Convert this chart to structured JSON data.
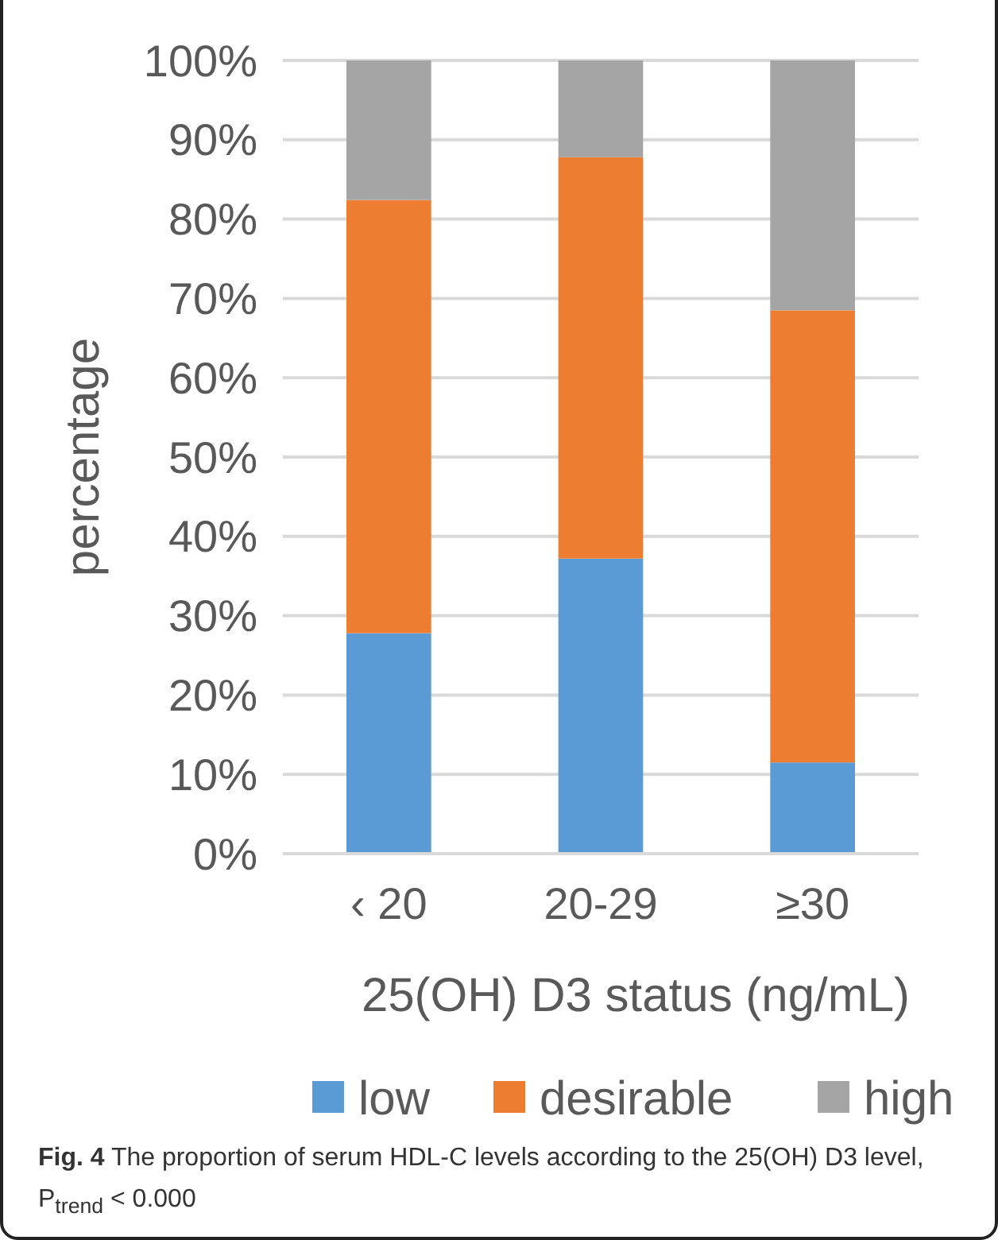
{
  "chart_data": {
    "type": "bar",
    "stacked": true,
    "xlabel": "25(OH) D3 status (ng/mL)",
    "ylabel": "percentage",
    "categories": [
      "‹ 20",
      "20-29",
      "≥30"
    ],
    "series": [
      {
        "name": "low",
        "color": "#5b9bd5",
        "values": [
          27.8,
          37.2,
          11.5
        ]
      },
      {
        "name": "desirable",
        "color": "#ed7d31",
        "values": [
          54.6,
          50.6,
          57.0
        ]
      },
      {
        "name": "high",
        "color": "#a5a5a5",
        "values": [
          17.6,
          12.2,
          31.5
        ]
      }
    ],
    "ylim": [
      0,
      100
    ],
    "yticks": [
      {
        "value": 0,
        "label": "0%"
      },
      {
        "value": 10,
        "label": "10%"
      },
      {
        "value": 20,
        "label": "20%"
      },
      {
        "value": 30,
        "label": "30%"
      },
      {
        "value": 40,
        "label": "40%"
      },
      {
        "value": 50,
        "label": "50%"
      },
      {
        "value": 60,
        "label": "60%"
      },
      {
        "value": 70,
        "label": "70%"
      },
      {
        "value": 80,
        "label": "80%"
      },
      {
        "value": 90,
        "label": "90%"
      },
      {
        "value": 100,
        "label": "100%"
      }
    ],
    "grid": "y",
    "legend": "bottom",
    "annotations": [
      "Fig. 4 The proportion of serum HDL-C levels according to the 25(OH) D3 level, P$_{trend}$ < 0.000"
    ]
  }
}
